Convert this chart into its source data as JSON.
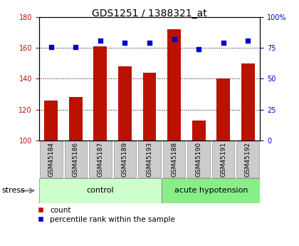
{
  "title": "GDS1251 / 1388321_at",
  "samples": [
    "GSM45184",
    "GSM45186",
    "GSM45187",
    "GSM45189",
    "GSM45193",
    "GSM45188",
    "GSM45190",
    "GSM45191",
    "GSM45192"
  ],
  "counts": [
    126,
    128,
    161,
    148,
    144,
    172,
    113,
    140,
    150
  ],
  "percentiles": [
    76,
    76,
    81,
    79,
    79,
    82,
    74,
    79,
    81
  ],
  "n_control": 5,
  "n_acute": 4,
  "bar_color": "#bb1100",
  "dot_color": "#0000cc",
  "ylim_left": [
    100,
    180
  ],
  "ylim_right": [
    0,
    100
  ],
  "yticks_left": [
    100,
    120,
    140,
    160,
    180
  ],
  "yticks_right": [
    0,
    25,
    50,
    75,
    100
  ],
  "ytick_labels_right": [
    "0",
    "25",
    "50",
    "75",
    "100%"
  ],
  "control_color": "#ccffcc",
  "acute_color": "#88ee88",
  "tick_bg_color": "#cccccc",
  "stress_label": "stress",
  "control_label": "control",
  "acute_label": "acute hypotension",
  "legend_count": "count",
  "legend_pct": "percentile rank within the sample",
  "title_fontsize": 10,
  "tick_label_fontsize": 7,
  "group_label_fontsize": 8,
  "legend_fontsize": 7.5
}
